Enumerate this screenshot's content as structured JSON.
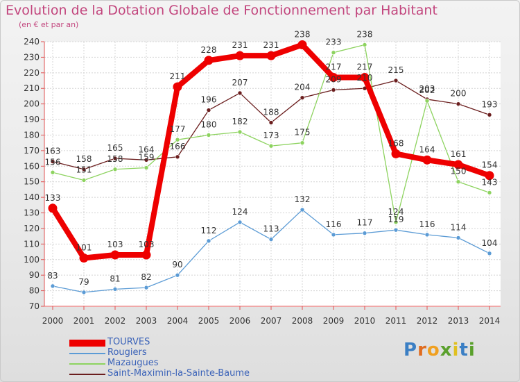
{
  "chart_data": {
    "type": "line",
    "title": "Evolution de la Dotation Globale de Fonctionnement par Habitant",
    "subtitle": "(en € et par an)",
    "x": [
      "2000",
      "2001",
      "2002",
      "2003",
      "2004",
      "2005",
      "2006",
      "2007",
      "2008",
      "2009",
      "2010",
      "2011",
      "2012",
      "2013",
      "2014"
    ],
    "ylim": [
      70,
      240
    ],
    "yticks": [
      70,
      80,
      90,
      100,
      110,
      120,
      130,
      140,
      150,
      160,
      170,
      180,
      190,
      200,
      210,
      220,
      230,
      240
    ],
    "grid": true,
    "legend_position": "bottom-left",
    "series": [
      {
        "name": "TOURVES",
        "color": "#ee0000",
        "values": [
          133,
          101,
          103,
          103,
          211,
          228,
          231,
          231,
          238,
          217,
          217,
          168,
          164,
          161,
          154
        ]
      },
      {
        "name": "Rougiers",
        "color": "#5b9bd5",
        "values": [
          83,
          79,
          81,
          82,
          90,
          112,
          124,
          113,
          132,
          116,
          117,
          119,
          116,
          114,
          104
        ]
      },
      {
        "name": "Mazaugues",
        "color": "#8dd35f",
        "values": [
          156,
          151,
          158,
          159,
          177,
          180,
          182,
          173,
          175,
          233,
          238,
          124,
          202,
          150,
          143
        ]
      },
      {
        "name": "Saint-Maximin-la-Sainte-Baume",
        "color": "#6b1e1e",
        "values": [
          163,
          158,
          165,
          164,
          166,
          196,
          207,
          188,
          204,
          209,
          210,
          215,
          203,
          200,
          193
        ]
      }
    ]
  },
  "brand": {
    "letters": [
      "P",
      "r",
      "o",
      "x",
      "i",
      "t",
      "i"
    ],
    "colors": [
      "#3b7fc4",
      "#e06c1f",
      "#f0a020",
      "#5aa02c",
      "#e0c020",
      "#3b7fc4",
      "#5aa02c"
    ]
  }
}
